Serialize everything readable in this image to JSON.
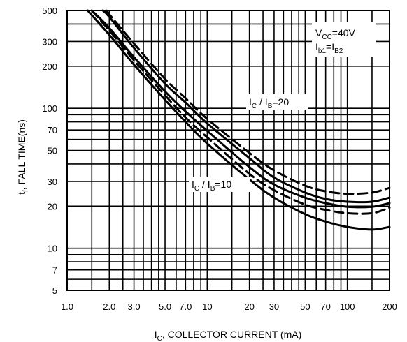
{
  "chart_data": {
    "type": "line",
    "xscale": "log",
    "yscale": "log",
    "xlim": [
      1,
      200
    ],
    "ylim": [
      5,
      500
    ],
    "grid": true,
    "xlabel": {
      "prefix": "I",
      "sub": "C",
      "rest": ", COLLECTOR CURRENT (mA)"
    },
    "ylabel": {
      "prefix": "t",
      "sub": "f",
      "rest": ", FALL TIME(ns)"
    },
    "x_ticks": [
      {
        "v": 1,
        "label": "1.0"
      },
      {
        "v": 2,
        "label": "2.0"
      },
      {
        "v": 3,
        "label": "3.0"
      },
      {
        "v": 5,
        "label": "5.0"
      },
      {
        "v": 7,
        "label": "7.0"
      },
      {
        "v": 10,
        "label": "10"
      },
      {
        "v": 20,
        "label": "20"
      },
      {
        "v": 30,
        "label": "30"
      },
      {
        "v": 50,
        "label": "50"
      },
      {
        "v": 70,
        "label": "70"
      },
      {
        "v": 100,
        "label": "100"
      },
      {
        "v": 200,
        "label": "200"
      }
    ],
    "y_ticks": [
      {
        "v": 5,
        "label": "5"
      },
      {
        "v": 7,
        "label": "7"
      },
      {
        "v": 10,
        "label": "10"
      },
      {
        "v": 20,
        "label": "20"
      },
      {
        "v": 30,
        "label": "30"
      },
      {
        "v": 50,
        "label": "50"
      },
      {
        "v": 70,
        "label": "70"
      },
      {
        "v": 100,
        "label": "100"
      },
      {
        "v": 200,
        "label": "200"
      },
      {
        "v": 300,
        "label": "300"
      },
      {
        "v": 500,
        "label": "500"
      }
    ],
    "x_grid": [
      1,
      1.5,
      2,
      2.5,
      3,
      3.5,
      4,
      4.5,
      5,
      6,
      7,
      8,
      9,
      10,
      15,
      20,
      25,
      30,
      35,
      40,
      45,
      50,
      60,
      70,
      80,
      90,
      100,
      150,
      200
    ],
    "y_grid": [
      5,
      6,
      7,
      8,
      9,
      10,
      20,
      30,
      40,
      50,
      60,
      70,
      80,
      90,
      100,
      200,
      300,
      400,
      500
    ],
    "series": [
      {
        "style": "solid",
        "x": [
          1.4,
          2,
          3,
          5,
          7,
          10,
          20,
          30,
          50,
          70,
          100,
          150,
          200
        ],
        "y": [
          500,
          335,
          205,
          115,
          80,
          56,
          31,
          23,
          17.5,
          15.5,
          14.2,
          13.6,
          14.2
        ]
      },
      {
        "style": "dashed",
        "x": [
          1.5,
          2,
          3,
          5,
          7,
          10,
          20,
          30,
          50,
          70,
          100,
          150,
          200
        ],
        "y": [
          500,
          360,
          220,
          124,
          86,
          62,
          34,
          26,
          20.5,
          18.8,
          17.8,
          17.8,
          19.5
        ]
      },
      {
        "style": "solid",
        "x": [
          1.5,
          2,
          3,
          5,
          7,
          10,
          20,
          30,
          50,
          70,
          100,
          150,
          200
        ],
        "y": [
          500,
          375,
          232,
          132,
          95,
          69,
          38,
          28.5,
          23,
          21,
          19.8,
          19.8,
          21
        ]
      },
      {
        "style": "solid",
        "x": [
          1.8,
          2,
          3,
          5,
          7,
          10,
          20,
          30,
          50,
          70,
          100,
          150,
          200
        ],
        "y": [
          500,
          450,
          270,
          150,
          110,
          78,
          44,
          32,
          25,
          22.5,
          21.5,
          21.5,
          23
        ]
      },
      {
        "style": "dashed",
        "x": [
          1.9,
          2,
          3,
          5,
          7,
          10,
          20,
          30,
          50,
          70,
          100,
          150,
          200
        ],
        "y": [
          500,
          470,
          290,
          162,
          118,
          84,
          48,
          36,
          28,
          25.5,
          24.5,
          25,
          27
        ]
      }
    ],
    "annotations": {
      "vcc": {
        "prefix": "V",
        "sub": "CC",
        "rest": "=40V"
      },
      "ib": {
        "p1": "I",
        "s1": "b1",
        "mid": "=I",
        "s2": "B2"
      },
      "ic20": {
        "p1": "I",
        "s1": "C",
        "mid": " / I",
        "s2": "B",
        "rest": "=20"
      },
      "ic10": {
        "p1": "I",
        "s1": "C",
        "mid": " / I",
        "s2": "B",
        "rest": "=10"
      }
    }
  }
}
